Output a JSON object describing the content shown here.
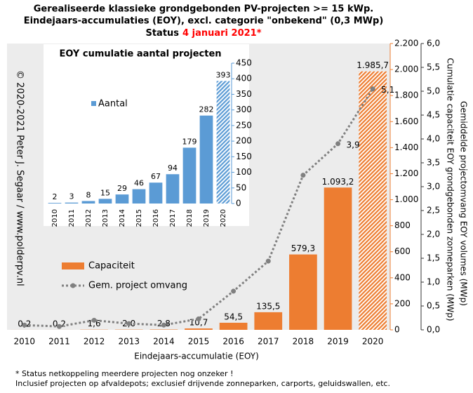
{
  "chart_data": [
    {
      "type": "bar",
      "title": [
        "Gerealiseerde klassieke grondgebonden PV-projecten >= 15 kWp.",
        "Eindejaars-accumulaties (EOY), excl. categorie \"onbekend\" (0,3 MWp)"
      ],
      "status": {
        "text": "Status",
        "date": "4 januari 2021*",
        "date_color": "#ff0000"
      },
      "categories": [
        "2010",
        "2011",
        "2012",
        "2013",
        "2014",
        "2015",
        "2016",
        "2017",
        "2018",
        "2019",
        "2020"
      ],
      "series": [
        {
          "name": "Capaciteit",
          "color": "#ed7d31",
          "values": [
            0.2,
            0.2,
            1.6,
            2.0,
            2.8,
            10.7,
            54.5,
            135.5,
            579.3,
            1093.2,
            1985.7
          ],
          "value_labels": [
            "0,2",
            "0,2",
            "1,6",
            "2,0",
            "2,8",
            "10,7",
            "54,5",
            "135,5",
            "579,3",
            "1.093,2",
            "1.985,7"
          ],
          "hatch": [
            false,
            false,
            false,
            false,
            false,
            false,
            false,
            false,
            false,
            false,
            true
          ]
        },
        {
          "name": "Gem. project omvang",
          "type": "line",
          "axis": "y2",
          "color": "#808080",
          "values": [
            0.1,
            0.07,
            0.2,
            0.13,
            0.1,
            0.23,
            0.81,
            1.44,
            3.24,
            3.9,
            5.05
          ],
          "value_labels": [
            null,
            null,
            null,
            null,
            null,
            null,
            null,
            null,
            null,
            "3,9",
            "5,1"
          ]
        }
      ],
      "ylim": [
        0,
        2200
      ],
      "yticks": [
        0,
        200,
        400,
        600,
        800,
        {
          "value": 1000,
          "label": "1.000"
        },
        {
          "value": 1200,
          "label": "1.200"
        },
        {
          "value": 1400,
          "label": "1.400"
        },
        {
          "value": 1600,
          "label": "1.600"
        },
        {
          "value": 1800,
          "label": "1.800"
        },
        {
          "value": 2000,
          "label": "2.000"
        },
        {
          "value": 2200,
          "label": "2.200"
        }
      ],
      "y2lim": [
        0,
        6
      ],
      "y2ticks": [
        {
          "value": 0,
          "label": "0,0"
        },
        {
          "value": 0.5,
          "label": "0,5"
        },
        {
          "value": 1,
          "label": "1,0"
        },
        {
          "value": 1.5,
          "label": "1,5"
        },
        {
          "value": 2,
          "label": "2,0"
        },
        {
          "value": 2.5,
          "label": "2,5"
        },
        {
          "value": 3,
          "label": "3,0"
        },
        {
          "value": 3.5,
          "label": "3,5"
        },
        {
          "value": 4,
          "label": "4,0"
        },
        {
          "value": 4.5,
          "label": "4,5"
        },
        {
          "value": 5,
          "label": "5,0"
        },
        {
          "value": 5.5,
          "label": "5,5"
        },
        {
          "value": 6,
          "label": "6,0"
        }
      ],
      "xlabel": "Eindejaars-accumulatie (EOY)",
      "ylabel": "Cumulatie capaciteit EOY grondgebonden zonneparken (MWp)",
      "y2label": "Gemiddelde projectomvang EOY volumes (MWp)",
      "copyright": "© 2020-2021 Peter J. Segaar / www.polderpv.nl",
      "footnotes": [
        "* Status netkoppeling meerdere projecten nog onzeker !",
        "Inclusief projecten op afvaldepots; exclusief drijvende zonneparken, carports, geluidswallen, etc."
      ]
    },
    {
      "type": "bar",
      "title": "EOY cumulatie aantal projecten",
      "categories": [
        "2010",
        "2011",
        "2012",
        "2013",
        "2014",
        "2015",
        "2016",
        "2017",
        "2018",
        "2019",
        "2020"
      ],
      "series": [
        {
          "name": "Aantal",
          "color": "#5b9bd5",
          "values": [
            2,
            3,
            8,
            15,
            29,
            46,
            67,
            94,
            179,
            282,
            393
          ],
          "hatch": [
            false,
            false,
            false,
            false,
            false,
            false,
            false,
            false,
            false,
            false,
            true
          ]
        }
      ],
      "ylim": [
        0,
        450
      ],
      "yticks": [
        0,
        50,
        100,
        150,
        200,
        250,
        300,
        350,
        400,
        450
      ]
    }
  ]
}
